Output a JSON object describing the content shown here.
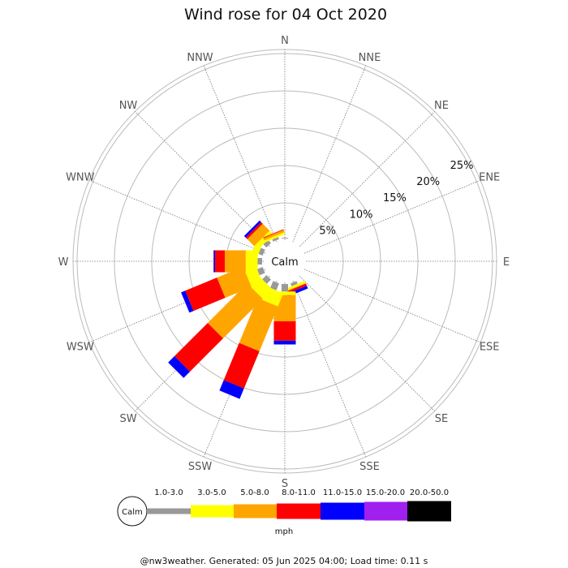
{
  "chart_data": {
    "type": "wind-rose",
    "title": "Wind rose for 04 Oct 2020",
    "directions": [
      "N",
      "NNE",
      "NE",
      "ENE",
      "E",
      "ESE",
      "SE",
      "SSE",
      "S",
      "SSW",
      "SW",
      "WSW",
      "W",
      "WNW",
      "NW",
      "NNW"
    ],
    "ring_labels": [
      "5%",
      "10%",
      "15%",
      "20%",
      "25%"
    ],
    "ring_values": [
      5,
      10,
      15,
      20,
      25
    ],
    "calm_label": "Calm",
    "bins": [
      {
        "label": "1.0-3.0",
        "color": "#999999"
      },
      {
        "label": "3.0-5.0",
        "color": "#ffff00"
      },
      {
        "label": "5.0-8.0",
        "color": "#ffa500"
      },
      {
        "label": "8.0-11.0",
        "color": "#ff0000"
      },
      {
        "label": "11.0-15.0",
        "color": "#0000ff"
      },
      {
        "label": "15.0-20.0",
        "color": "#a020f0"
      },
      {
        "label": "20.0-50.0",
        "color": "#000000"
      }
    ],
    "units": "mph",
    "values": {
      "N": [
        0.1,
        0.0,
        0.0,
        0.0,
        0.0,
        0.0,
        0.0
      ],
      "NNE": [
        0.0,
        0.0,
        0.0,
        0.0,
        0.0,
        0.0,
        0.0
      ],
      "NE": [
        0.0,
        0.0,
        0.0,
        0.0,
        0.0,
        0.0,
        0.0
      ],
      "ENE": [
        0.0,
        0.0,
        0.0,
        0.0,
        0.0,
        0.0,
        0.0
      ],
      "E": [
        0.0,
        0.0,
        0.0,
        0.0,
        0.0,
        0.0,
        0.0
      ],
      "ESE": [
        0.0,
        0.0,
        0.0,
        0.0,
        0.0,
        0.0,
        0.0
      ],
      "SE": [
        0.0,
        0.0,
        0.0,
        0.0,
        0.0,
        0.0,
        0.0
      ],
      "SSE": [
        0.4,
        0.3,
        0.1,
        0.3,
        0.4,
        0.0,
        0.0
      ],
      "S": [
        1.0,
        0.5,
        3.5,
        2.6,
        0.5,
        0.0,
        0.0
      ],
      "SSW": [
        1.0,
        1.9,
        6.5,
        5.4,
        1.5,
        0.0,
        0.0
      ],
      "SW": [
        0.8,
        1.8,
        7.5,
        6.3,
        1.2,
        0.0,
        0.0
      ],
      "WSW": [
        0.8,
        1.6,
        3.8,
        4.6,
        0.6,
        0.0,
        0.0
      ],
      "W": [
        0.6,
        1.6,
        2.8,
        1.3,
        0.2,
        0.0,
        0.0
      ],
      "WNW": [
        0.6,
        0.9,
        0.0,
        0.0,
        0.0,
        0.0,
        0.0
      ],
      "NW": [
        0.6,
        0.7,
        1.3,
        0.3,
        0.3,
        0.0,
        0.0
      ],
      "NNW": [
        0.3,
        0.3,
        0.3,
        0.1,
        0.0,
        0.0,
        0.0
      ]
    },
    "legend_placement": "bottom"
  },
  "footer": {
    "text": "@nw3weather. Generated: 05 Jun 2025 04:00; Load time: 0.11 s"
  }
}
